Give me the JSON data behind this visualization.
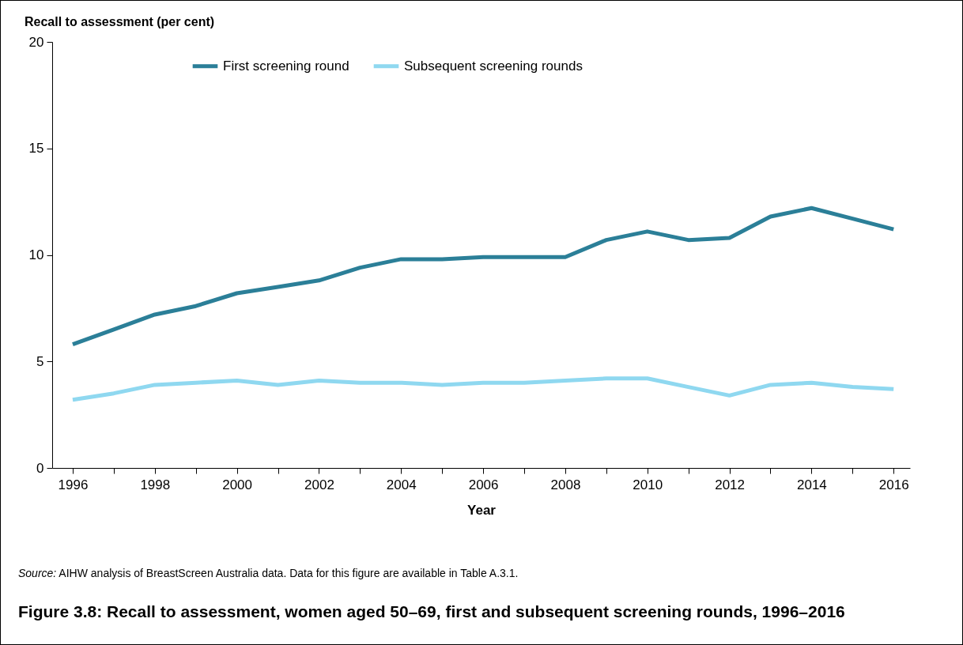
{
  "chart_data": {
    "type": "line",
    "title": "Figure 3.8: Recall to assessment, women aged 50–69, first and subsequent screening rounds, 1996–2016",
    "xlabel": "Year",
    "ylabel": "Recall to assessment (per cent)",
    "annotations": [
      "Source: AIHW analysis of BreastScreen Australia data. Data for this figure are available in Table A.3.1."
    ],
    "x": [
      1996,
      1997,
      1998,
      1999,
      2000,
      2001,
      2002,
      2003,
      2004,
      2005,
      2006,
      2007,
      2008,
      2009,
      2010,
      2011,
      2012,
      2013,
      2014,
      2015,
      2016
    ],
    "series": [
      {
        "name": "First screening round",
        "color": "#2b7f98",
        "values": [
          5.8,
          6.5,
          7.2,
          7.6,
          8.2,
          8.5,
          8.8,
          9.4,
          9.8,
          9.8,
          9.9,
          9.9,
          9.9,
          10.7,
          11.1,
          10.7,
          10.8,
          11.8,
          12.2,
          11.7,
          11.2
        ]
      },
      {
        "name": "Subsequent screening rounds",
        "color": "#8fd8f0",
        "values": [
          3.2,
          3.5,
          3.9,
          4.0,
          4.1,
          3.9,
          4.1,
          4.0,
          4.0,
          3.9,
          4.0,
          4.0,
          4.1,
          4.2,
          4.2,
          3.8,
          3.4,
          3.9,
          4.0,
          3.8,
          3.7
        ]
      }
    ],
    "xlim": [
      1995.5,
      2016.4
    ],
    "xticks": [
      1996,
      {
        "value": 1997,
        "label": null
      },
      1998,
      {
        "value": 1999,
        "label": null
      },
      2000,
      {
        "value": 2001,
        "label": null
      },
      2002,
      {
        "value": 2003,
        "label": null
      },
      2004,
      {
        "value": 2005,
        "label": null
      },
      2006,
      {
        "value": 2007,
        "label": null
      },
      2008,
      {
        "value": 2009,
        "label": null
      },
      2010,
      {
        "value": 2011,
        "label": null
      },
      2012,
      {
        "value": 2013,
        "label": null
      },
      2014,
      {
        "value": 2015,
        "label": null
      },
      2016
    ],
    "ylim": [
      0,
      20
    ],
    "yticks": [
      0,
      5,
      10,
      15,
      20
    ],
    "grid": false,
    "legend": "top",
    "line_style": "solid",
    "marker": "none"
  }
}
